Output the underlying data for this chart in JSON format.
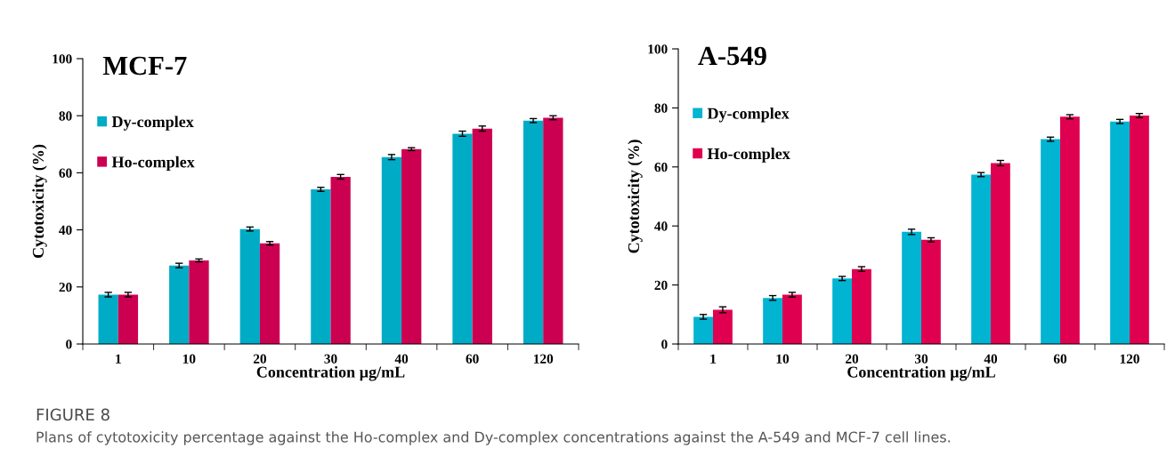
{
  "chart_data": [
    {
      "type": "bar",
      "title": "MCF-7",
      "xlabel": "Concentration µg/mL",
      "ylabel": "Cytotoxicity (%)",
      "categories": [
        "1",
        "10",
        "20",
        "30",
        "40",
        "60",
        "120"
      ],
      "series": [
        {
          "name": "Dy-complex",
          "color": "#00abc6",
          "values": [
            17.3,
            27.5,
            40.3,
            54.2,
            65.5,
            73.7,
            78.3
          ],
          "errors": [
            0.8,
            0.8,
            0.7,
            0.7,
            0.9,
            0.9,
            0.7
          ]
        },
        {
          "name": "Ho-complex",
          "color": "#cc0050",
          "values": [
            17.3,
            29.3,
            35.3,
            58.6,
            68.3,
            75.5,
            79.3
          ],
          "errors": [
            0.8,
            0.5,
            0.6,
            0.8,
            0.5,
            0.9,
            0.7
          ]
        }
      ],
      "ylim": [
        0,
        100
      ],
      "yticks": [
        0,
        20,
        40,
        60,
        80,
        100
      ],
      "grid": false,
      "legend": "top left",
      "annotations": [
        "FIGURE 8",
        "Plans of cytotoxicity percentage against the Ho-complex and Dy-complex concentrations against the A-549 and MCF-7 cell lines."
      ]
    },
    {
      "type": "bar",
      "title": "A-549",
      "xlabel": "Concentration µg/mL",
      "ylabel": "Cytotoxicity (%)",
      "categories": [
        "1",
        "10",
        "20",
        "30",
        "40",
        "60",
        "120"
      ],
      "series": [
        {
          "name": "Dy-complex",
          "color": "#00b4d2",
          "values": [
            9.2,
            15.6,
            22.2,
            38.0,
            57.4,
            69.4,
            75.4
          ],
          "errors": [
            0.8,
            0.8,
            0.7,
            0.9,
            0.7,
            0.7,
            0.7
          ]
        },
        {
          "name": "Ho-complex",
          "color": "#e00050",
          "values": [
            11.6,
            16.7,
            25.4,
            35.3,
            61.3,
            77.0,
            77.4
          ],
          "errors": [
            1.0,
            0.8,
            0.8,
            0.7,
            0.9,
            0.7,
            0.7
          ]
        }
      ],
      "ylim": [
        0,
        100
      ],
      "yticks": [
        0,
        20,
        40,
        60,
        80,
        100
      ],
      "grid": false,
      "legend": "top left"
    }
  ]
}
